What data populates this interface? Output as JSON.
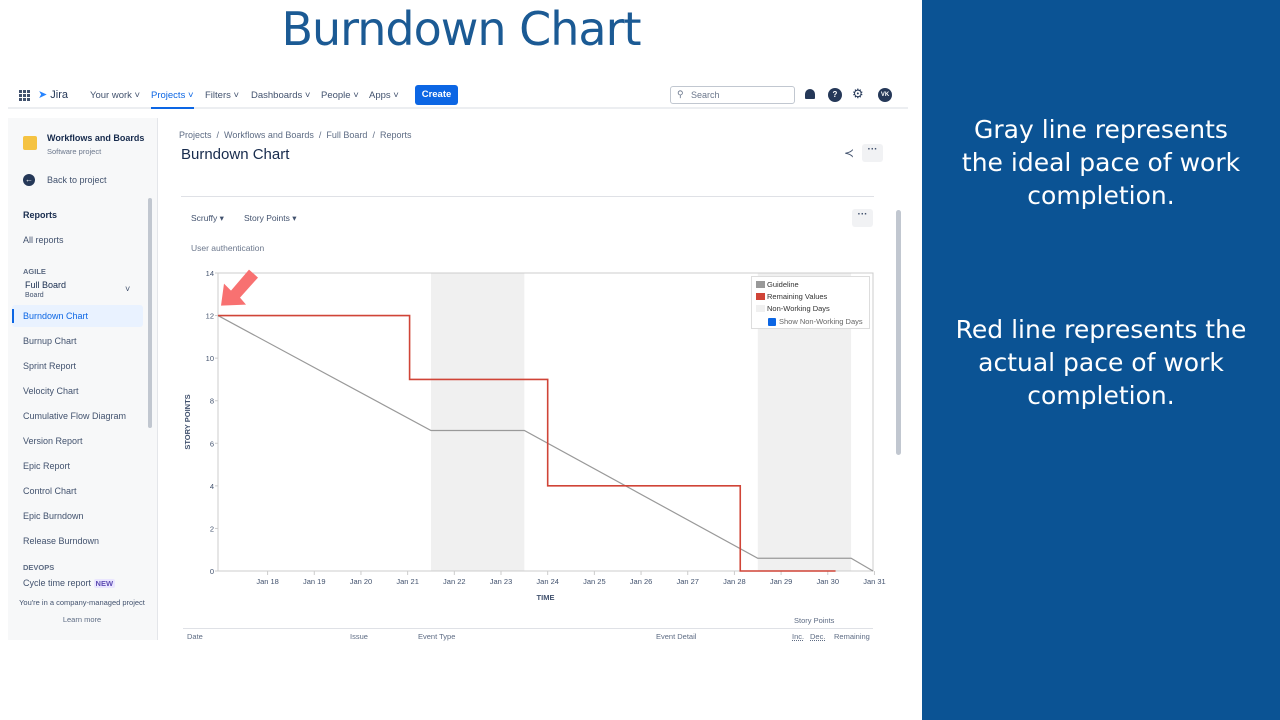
{
  "slide": {
    "title": "Burndown Chart",
    "notes": [
      "Gray line represents the ideal pace of work completion.",
      "Red line represents the actual pace of work completion."
    ],
    "panel_color": "#0b5394"
  },
  "nav": {
    "logo": "Jira",
    "items": [
      "Your work",
      "Projects",
      "Filters",
      "Dashboards",
      "People",
      "Apps"
    ],
    "active": "Projects",
    "create": "Create",
    "search_placeholder": "Search",
    "avatar": "VK",
    "icons": [
      "apps-grid-icon",
      "bell-icon",
      "help-icon",
      "gear-icon"
    ]
  },
  "sidebar": {
    "project_name": "Workflows and Boards",
    "project_type": "Software project",
    "back": "Back to project",
    "reports": "Reports",
    "all_reports": "All reports",
    "agile_label": "AGILE",
    "board": "Full Board",
    "board_type": "Board",
    "items": [
      "Burndown Chart",
      "Burnup Chart",
      "Sprint Report",
      "Velocity Chart",
      "Cumulative Flow Diagram",
      "Version Report",
      "Epic Report",
      "Control Chart",
      "Epic Burndown",
      "Release Burndown"
    ],
    "selected": "Burndown Chart",
    "devops_label": "DEVOPS",
    "cycle": "Cycle time report",
    "cycle_badge": "NEW",
    "footer": "You're in a company-managed project",
    "learn_more": "Learn more"
  },
  "page": {
    "breadcrumb": [
      "Projects",
      "Workflows and Boards",
      "Full Board",
      "Reports"
    ],
    "title": "Burndown Chart",
    "filter_board": "Scruffy",
    "filter_estimate": "Story Points",
    "epic": "User authentication"
  },
  "table": {
    "headers": [
      "Date",
      "Issue",
      "Event Type",
      "Event Detail"
    ],
    "group": "Story Points",
    "sub": [
      "Inc.",
      "Dec.",
      "Remaining"
    ]
  },
  "chart_data": {
    "type": "line",
    "xlabel": "TIME",
    "ylabel": "STORY POINTS",
    "ylim": [
      0,
      14
    ],
    "yticks": [
      0,
      2,
      4,
      6,
      8,
      10,
      12,
      14
    ],
    "xlim": [
      "Jan 17 10:30",
      "Jan 31 11:15"
    ],
    "xticks": [
      "Jan 18",
      "Jan 19",
      "Jan 20",
      "Jan 21",
      "Jan 22",
      "Jan 23",
      "Jan 24",
      "Jan 25",
      "Jan 26",
      "Jan 27",
      "Jan 28",
      "Jan 29",
      "Jan 30",
      "Jan 31"
    ],
    "legend": {
      "placement": "top-right",
      "items": [
        "Guideline",
        "Remaining Values",
        "Non-Working Days"
      ],
      "toggle": "Show Non-Working Days",
      "toggle_checked": true
    },
    "non_working": [
      [
        "Jan 22 00:00",
        "Jan 24 00:00"
      ],
      [
        "Jan 29 00:00",
        "Jan 31 00:00"
      ]
    ],
    "series": [
      {
        "name": "Guideline",
        "color": "#999999",
        "step": false,
        "points": [
          [
            "Jan 17 10:30",
            12
          ],
          [
            "Jan 22 00:00",
            6.6
          ],
          [
            "Jan 24 00:00",
            6.6
          ],
          [
            "Jan 29 00:00",
            0.6
          ],
          [
            "Jan 31 00:00",
            0.6
          ],
          [
            "Jan 31 11:15",
            0
          ]
        ]
      },
      {
        "name": "Remaining Values",
        "color": "#d04437",
        "step": true,
        "points": [
          [
            "Jan 17 10:30",
            12
          ],
          [
            "Jan 21 13:00",
            9
          ],
          [
            "Jan 24 12:00",
            4
          ],
          [
            "Jan 28 15:00",
            0
          ],
          [
            "Jan 30 16:00",
            0
          ]
        ]
      }
    ],
    "annotation": {
      "type": "arrow",
      "color": "#f87171",
      "points_to": [
        "Jan 17 10:30",
        12
      ]
    }
  }
}
